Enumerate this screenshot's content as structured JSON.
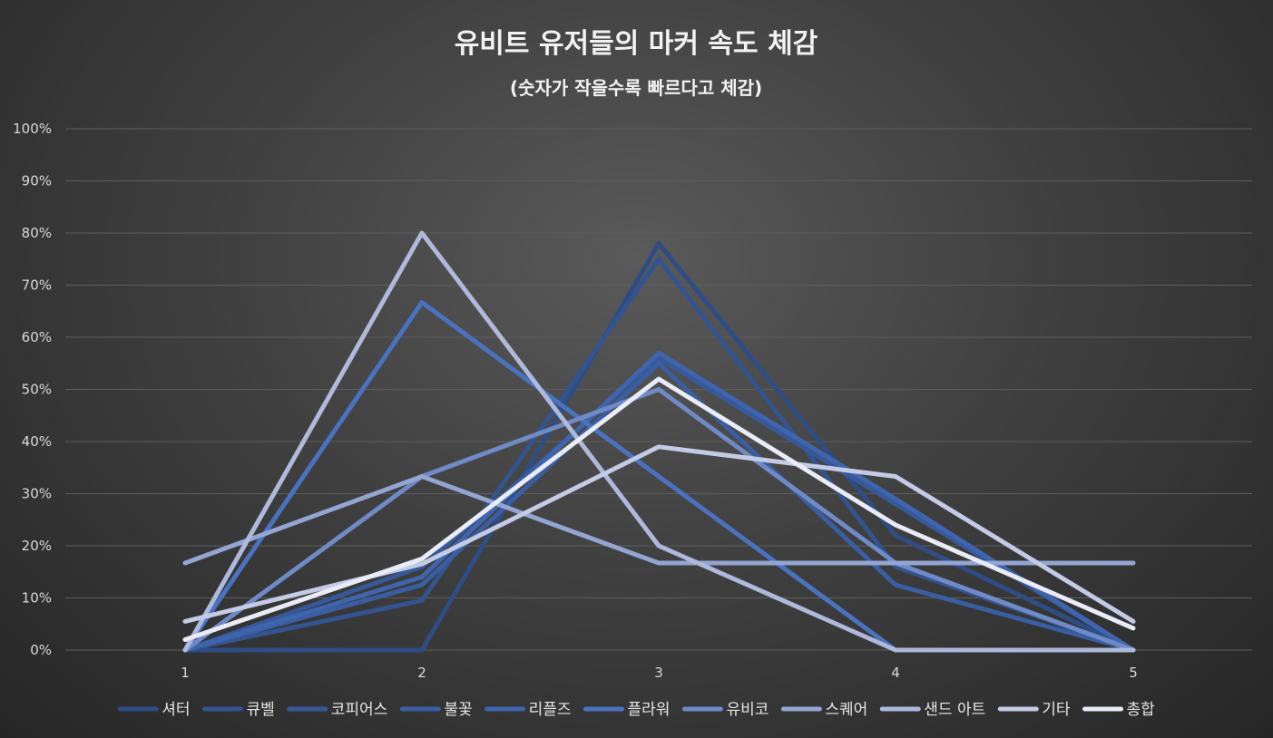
{
  "chart_data": {
    "type": "line",
    "title": "유비트 유저들의 마커 속도 체감",
    "subtitle": "(숫자가 작을수록 빠르다고 체감)",
    "xlabel": "",
    "ylabel": "",
    "x": [
      "1",
      "2",
      "3",
      "4",
      "5"
    ],
    "ylim": [
      0,
      100
    ],
    "yticks": [
      "0%",
      "10%",
      "20%",
      "30%",
      "40%",
      "50%",
      "60%",
      "70%",
      "80%",
      "90%",
      "100%"
    ],
    "grid": true,
    "legend_position": "bottom",
    "series": [
      {
        "name": "셔터",
        "color": "#2e4d85",
        "values": [
          0,
          0,
          78,
          22,
          0
        ]
      },
      {
        "name": "큐벨",
        "color": "#335490",
        "values": [
          0,
          9.5,
          75,
          16,
          0
        ]
      },
      {
        "name": "코피어스",
        "color": "#37599a",
        "values": [
          0,
          16,
          56,
          28,
          0
        ]
      },
      {
        "name": "불꽃",
        "color": "#3a5ea3",
        "values": [
          0,
          12.5,
          55,
          12.5,
          0
        ]
      },
      {
        "name": "리플즈",
        "color": "#3f65ae",
        "values": [
          0,
          14,
          57,
          29,
          0
        ]
      },
      {
        "name": "플라워",
        "color": "#4a72c0",
        "values": [
          0,
          66.7,
          33.3,
          0,
          0
        ]
      },
      {
        "name": "유비코",
        "color": "#6f8ac6",
        "values": [
          0,
          33.3,
          50,
          16.7,
          0
        ]
      },
      {
        "name": "스퀘어",
        "color": "#93a5d3",
        "values": [
          16.7,
          33.3,
          16.7,
          16.7,
          16.7
        ]
      },
      {
        "name": "샌드 아트",
        "color": "#aeb9dc",
        "values": [
          0,
          80,
          20,
          0,
          0
        ]
      },
      {
        "name": "기타",
        "color": "#c4cbe6",
        "values": [
          5.5,
          16.5,
          39,
          33.3,
          5.5
        ]
      },
      {
        "name": "총합",
        "color": "#e9ecf6",
        "values": [
          2,
          17.5,
          52,
          24,
          4.2
        ]
      }
    ]
  }
}
